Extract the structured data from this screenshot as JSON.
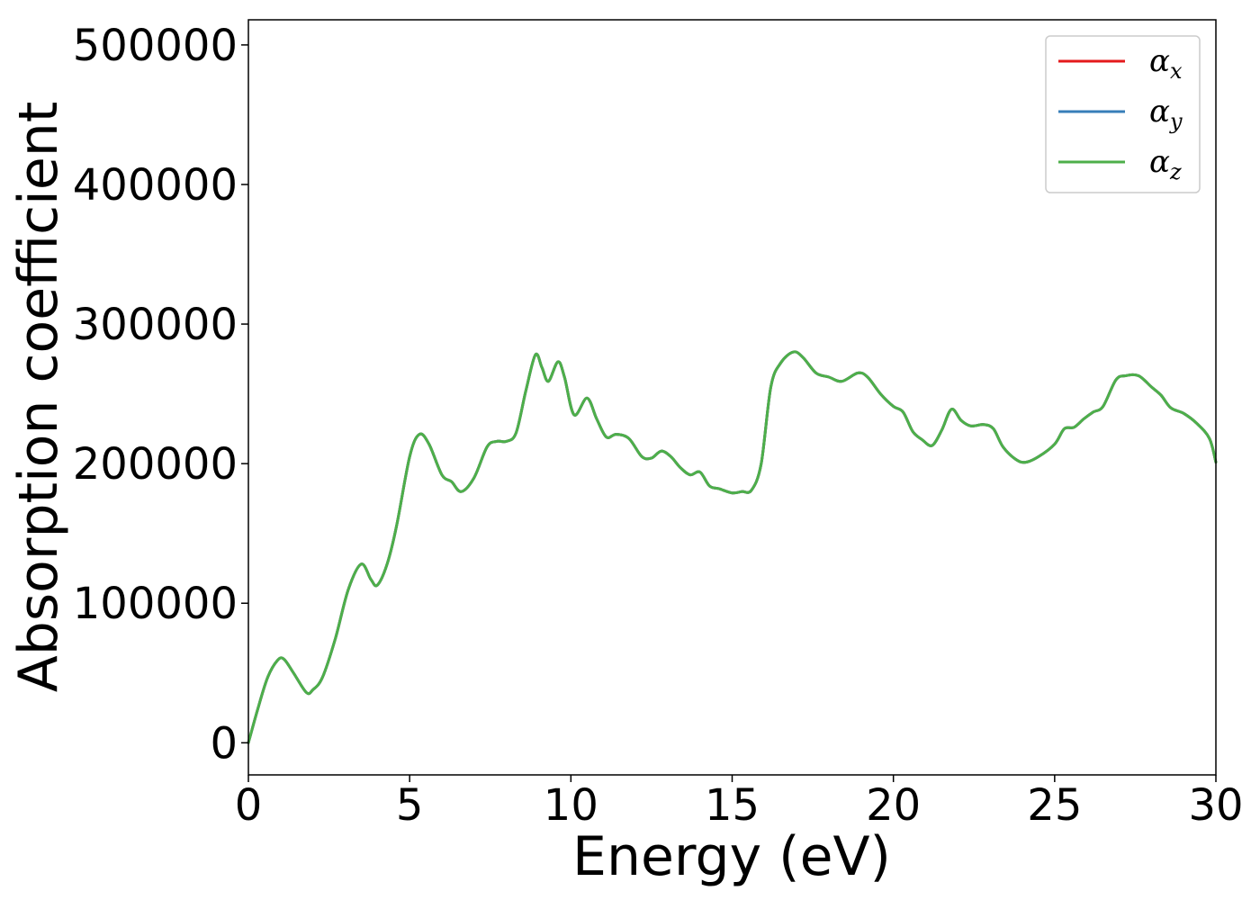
{
  "chart_data": {
    "type": "line",
    "title": "",
    "xlabel": "Energy (eV)",
    "ylabel": "Absorption coefficient",
    "xlim": [
      0,
      30
    ],
    "ylim": [
      -23000,
      518000
    ],
    "xticks": [
      0,
      5,
      10,
      15,
      20,
      25,
      30
    ],
    "yticks": [
      0,
      100000,
      200000,
      300000,
      400000,
      500000
    ],
    "grid": false,
    "legend_position": "top-right",
    "series": [
      {
        "name": "α_x",
        "symbol": "α",
        "subscript": "x",
        "color": "#e41a1c",
        "x": [
          0,
          0.3,
          0.6,
          0.9,
          1.1,
          1.4,
          1.8,
          2.0,
          2.3,
          2.7,
          3.1,
          3.5,
          3.8,
          4.0,
          4.3,
          4.6,
          5.0,
          5.3,
          5.6,
          6.0,
          6.3,
          6.6,
          7.0,
          7.4,
          7.7,
          8.0,
          8.3,
          8.6,
          8.9,
          9.1,
          9.3,
          9.6,
          9.8,
          10.1,
          10.5,
          10.8,
          11.1,
          11.4,
          11.8,
          12.2,
          12.5,
          12.8,
          13.1,
          13.4,
          13.7,
          14.0,
          14.3,
          14.6,
          15.0,
          15.3,
          15.6,
          15.9,
          16.2,
          16.5,
          16.9,
          17.2,
          17.6,
          18.0,
          18.4,
          18.9,
          19.2,
          19.6,
          20.0,
          20.3,
          20.6,
          20.9,
          21.2,
          21.5,
          21.8,
          22.1,
          22.4,
          22.8,
          23.1,
          23.4,
          23.8,
          24.1,
          24.5,
          25.0,
          25.3,
          25.6,
          25.9,
          26.2,
          26.5,
          26.9,
          27.2,
          27.6,
          28.0,
          28.3,
          28.6,
          29.0,
          29.4,
          29.8,
          30.0
        ],
        "values": [
          0,
          25000,
          47000,
          59000,
          60000,
          50000,
          36000,
          38000,
          47000,
          75000,
          110000,
          128000,
          117000,
          113000,
          128000,
          156000,
          205000,
          221000,
          214000,
          192000,
          187000,
          180000,
          190000,
          212000,
          216000,
          216000,
          222000,
          252000,
          278000,
          269000,
          259000,
          273000,
          262000,
          235000,
          247000,
          232000,
          219000,
          221000,
          218000,
          205000,
          204000,
          209000,
          205000,
          197000,
          192000,
          194000,
          184000,
          182000,
          179000,
          180000,
          181000,
          200000,
          255000,
          272000,
          280000,
          276000,
          265000,
          262000,
          259000,
          265000,
          262000,
          250000,
          241000,
          237000,
          223000,
          217000,
          213000,
          224000,
          239000,
          231000,
          227000,
          228000,
          225000,
          212000,
          203000,
          201000,
          205000,
          214000,
          225000,
          226000,
          232000,
          237000,
          241000,
          260000,
          263000,
          263000,
          255000,
          249000,
          240000,
          236000,
          229000,
          218000,
          201000
        ]
      },
      {
        "name": "α_y",
        "symbol": "α",
        "subscript": "y",
        "color": "#377eb8",
        "x": [
          0,
          0.3,
          0.6,
          0.9,
          1.1,
          1.4,
          1.8,
          2.0,
          2.3,
          2.7,
          3.1,
          3.5,
          3.8,
          4.0,
          4.3,
          4.6,
          5.0,
          5.3,
          5.6,
          6.0,
          6.3,
          6.6,
          7.0,
          7.4,
          7.7,
          8.0,
          8.3,
          8.6,
          8.9,
          9.1,
          9.3,
          9.6,
          9.8,
          10.1,
          10.5,
          10.8,
          11.1,
          11.4,
          11.8,
          12.2,
          12.5,
          12.8,
          13.1,
          13.4,
          13.7,
          14.0,
          14.3,
          14.6,
          15.0,
          15.3,
          15.6,
          15.9,
          16.2,
          16.5,
          16.9,
          17.2,
          17.6,
          18.0,
          18.4,
          18.9,
          19.2,
          19.6,
          20.0,
          20.3,
          20.6,
          20.9,
          21.2,
          21.5,
          21.8,
          22.1,
          22.4,
          22.8,
          23.1,
          23.4,
          23.8,
          24.1,
          24.5,
          25.0,
          25.3,
          25.6,
          25.9,
          26.2,
          26.5,
          26.9,
          27.2,
          27.6,
          28.0,
          28.3,
          28.6,
          29.0,
          29.4,
          29.8,
          30.0
        ],
        "values": [
          0,
          25000,
          47000,
          59000,
          60000,
          50000,
          36000,
          38000,
          47000,
          75000,
          110000,
          128000,
          117000,
          113000,
          128000,
          156000,
          205000,
          221000,
          214000,
          192000,
          187000,
          180000,
          190000,
          212000,
          216000,
          216000,
          222000,
          252000,
          278000,
          269000,
          259000,
          273000,
          262000,
          235000,
          247000,
          232000,
          219000,
          221000,
          218000,
          205000,
          204000,
          209000,
          205000,
          197000,
          192000,
          194000,
          184000,
          182000,
          179000,
          180000,
          181000,
          200000,
          255000,
          272000,
          280000,
          276000,
          265000,
          262000,
          259000,
          265000,
          262000,
          250000,
          241000,
          237000,
          223000,
          217000,
          213000,
          224000,
          239000,
          231000,
          227000,
          228000,
          225000,
          212000,
          203000,
          201000,
          205000,
          214000,
          225000,
          226000,
          232000,
          237000,
          241000,
          260000,
          263000,
          263000,
          255000,
          249000,
          240000,
          236000,
          229000,
          218000,
          201000
        ]
      },
      {
        "name": "α_z",
        "symbol": "α",
        "subscript": "z",
        "color": "#4daf4a",
        "x": [
          0,
          0.3,
          0.6,
          0.9,
          1.1,
          1.4,
          1.8,
          2.0,
          2.3,
          2.7,
          3.1,
          3.5,
          3.8,
          4.0,
          4.3,
          4.6,
          5.0,
          5.3,
          5.6,
          6.0,
          6.3,
          6.6,
          7.0,
          7.4,
          7.7,
          8.0,
          8.3,
          8.6,
          8.9,
          9.1,
          9.3,
          9.6,
          9.8,
          10.1,
          10.5,
          10.8,
          11.1,
          11.4,
          11.8,
          12.2,
          12.5,
          12.8,
          13.1,
          13.4,
          13.7,
          14.0,
          14.3,
          14.6,
          15.0,
          15.3,
          15.6,
          15.9,
          16.2,
          16.5,
          16.9,
          17.2,
          17.6,
          18.0,
          18.4,
          18.9,
          19.2,
          19.6,
          20.0,
          20.3,
          20.6,
          20.9,
          21.2,
          21.5,
          21.8,
          22.1,
          22.4,
          22.8,
          23.1,
          23.4,
          23.8,
          24.1,
          24.5,
          25.0,
          25.3,
          25.6,
          25.9,
          26.2,
          26.5,
          26.9,
          27.2,
          27.6,
          28.0,
          28.3,
          28.6,
          29.0,
          29.4,
          29.8,
          30.0
        ],
        "values": [
          0,
          25000,
          47000,
          59000,
          60000,
          50000,
          36000,
          38000,
          47000,
          75000,
          110000,
          128000,
          117000,
          113000,
          128000,
          156000,
          205000,
          221000,
          214000,
          192000,
          187000,
          180000,
          190000,
          212000,
          216000,
          216000,
          222000,
          252000,
          278000,
          269000,
          259000,
          273000,
          262000,
          235000,
          247000,
          232000,
          219000,
          221000,
          218000,
          205000,
          204000,
          209000,
          205000,
          197000,
          192000,
          194000,
          184000,
          182000,
          179000,
          180000,
          181000,
          200000,
          255000,
          272000,
          280000,
          276000,
          265000,
          262000,
          259000,
          265000,
          262000,
          250000,
          241000,
          237000,
          223000,
          217000,
          213000,
          224000,
          239000,
          231000,
          227000,
          228000,
          225000,
          212000,
          203000,
          201000,
          205000,
          214000,
          225000,
          226000,
          232000,
          237000,
          241000,
          260000,
          263000,
          263000,
          255000,
          249000,
          240000,
          236000,
          229000,
          218000,
          201000
        ]
      }
    ]
  }
}
